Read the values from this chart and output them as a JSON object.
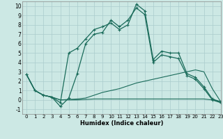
{
  "xlabel": "Humidex (Indice chaleur)",
  "xlim": [
    -0.5,
    23
  ],
  "ylim": [
    -1.5,
    10.5
  ],
  "xticks": [
    0,
    1,
    2,
    3,
    4,
    5,
    6,
    7,
    8,
    9,
    10,
    11,
    12,
    13,
    14,
    15,
    16,
    17,
    18,
    19,
    20,
    21,
    22,
    23
  ],
  "yticks": [
    -1,
    0,
    1,
    2,
    3,
    4,
    5,
    6,
    7,
    8,
    9,
    10
  ],
  "bg_color": "#cce8e4",
  "grid_color": "#aacccc",
  "line_color": "#1a6b5a",
  "series1_x": [
    0,
    1,
    2,
    3,
    4,
    5,
    6,
    7,
    8,
    9,
    10,
    11,
    12,
    13,
    14,
    15,
    16,
    17,
    18,
    19,
    20,
    21,
    22,
    23
  ],
  "series1_y": [
    2.7,
    1.0,
    0.5,
    0.3,
    -0.3,
    5.0,
    5.5,
    6.5,
    7.5,
    7.8,
    8.2,
    7.5,
    8.0,
    10.2,
    9.5,
    4.3,
    5.2,
    5.0,
    5.0,
    2.8,
    2.4,
    1.4,
    0.1,
    -0.2
  ],
  "series2_x": [
    0,
    1,
    2,
    3,
    4,
    5,
    6,
    7,
    8,
    9,
    10,
    11,
    12,
    13,
    14,
    15,
    16,
    17,
    18,
    19,
    20,
    21,
    22,
    23
  ],
  "series2_y": [
    2.7,
    1.0,
    0.5,
    0.3,
    -0.7,
    0.2,
    2.8,
    6.0,
    7.0,
    7.2,
    8.5,
    7.8,
    8.5,
    9.8,
    9.1,
    4.0,
    4.8,
    4.6,
    4.4,
    2.6,
    2.2,
    1.2,
    0.0,
    -0.3
  ],
  "series3_x": [
    0,
    1,
    2,
    3,
    4,
    5,
    6,
    7,
    8,
    9,
    10,
    11,
    12,
    13,
    14,
    15,
    16,
    17,
    18,
    19,
    20,
    21,
    22,
    23
  ],
  "series3_y": [
    2.7,
    1.0,
    0.5,
    0.3,
    0.0,
    0.05,
    0.1,
    0.2,
    0.5,
    0.8,
    1.0,
    1.2,
    1.5,
    1.8,
    2.0,
    2.2,
    2.4,
    2.6,
    2.8,
    3.0,
    3.2,
    3.0,
    1.2,
    -0.2
  ],
  "series4_x": [
    0,
    1,
    2,
    3,
    4,
    5,
    6,
    7,
    8,
    9,
    10,
    11,
    12,
    13,
    14,
    15,
    16,
    17,
    18,
    19,
    20,
    21,
    22,
    23
  ],
  "series4_y": [
    2.7,
    1.0,
    0.5,
    0.3,
    0.0,
    0.0,
    0.0,
    0.05,
    0.1,
    0.1,
    0.1,
    0.1,
    0.1,
    0.1,
    0.1,
    0.1,
    0.1,
    0.1,
    0.1,
    0.1,
    0.1,
    0.1,
    0.0,
    -0.2
  ]
}
